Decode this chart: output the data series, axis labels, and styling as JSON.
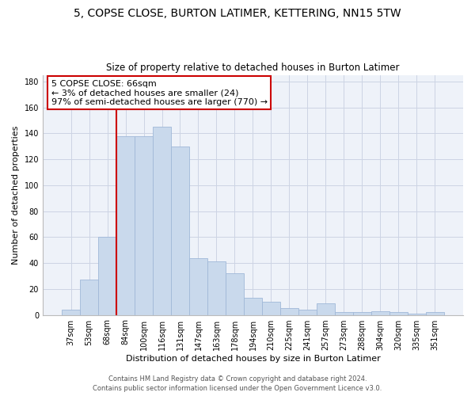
{
  "title": "5, COPSE CLOSE, BURTON LATIMER, KETTERING, NN15 5TW",
  "subtitle": "Size of property relative to detached houses in Burton Latimer",
  "xlabel": "Distribution of detached houses by size in Burton Latimer",
  "ylabel": "Number of detached properties",
  "categories": [
    "37sqm",
    "53sqm",
    "68sqm",
    "84sqm",
    "100sqm",
    "116sqm",
    "131sqm",
    "147sqm",
    "163sqm",
    "178sqm",
    "194sqm",
    "210sqm",
    "225sqm",
    "241sqm",
    "257sqm",
    "273sqm",
    "288sqm",
    "304sqm",
    "320sqm",
    "335sqm",
    "351sqm"
  ],
  "values": [
    4,
    27,
    60,
    138,
    138,
    145,
    130,
    44,
    41,
    32,
    13,
    10,
    5,
    4,
    9,
    2,
    2,
    3,
    2,
    1,
    2
  ],
  "bar_color": "#c9d9ec",
  "bar_edge_color": "#a0b8d8",
  "annotation_text": "5 COPSE CLOSE: 66sqm\n← 3% of detached houses are smaller (24)\n97% of semi-detached houses are larger (770) →",
  "annotation_box_color": "white",
  "annotation_box_edge_color": "#cc0000",
  "red_line_color": "#cc0000",
  "ylim": [
    0,
    185
  ],
  "yticks": [
    0,
    20,
    40,
    60,
    80,
    100,
    120,
    140,
    160,
    180
  ],
  "footer_line1": "Contains HM Land Registry data © Crown copyright and database right 2024.",
  "footer_line2": "Contains public sector information licensed under the Open Government Licence v3.0.",
  "title_fontsize": 10,
  "subtitle_fontsize": 8.5,
  "xlabel_fontsize": 8,
  "ylabel_fontsize": 8,
  "tick_fontsize": 7,
  "annotation_fontsize": 8,
  "footer_fontsize": 6,
  "grid_color": "#ccd4e4",
  "background_color": "#eef2f9"
}
